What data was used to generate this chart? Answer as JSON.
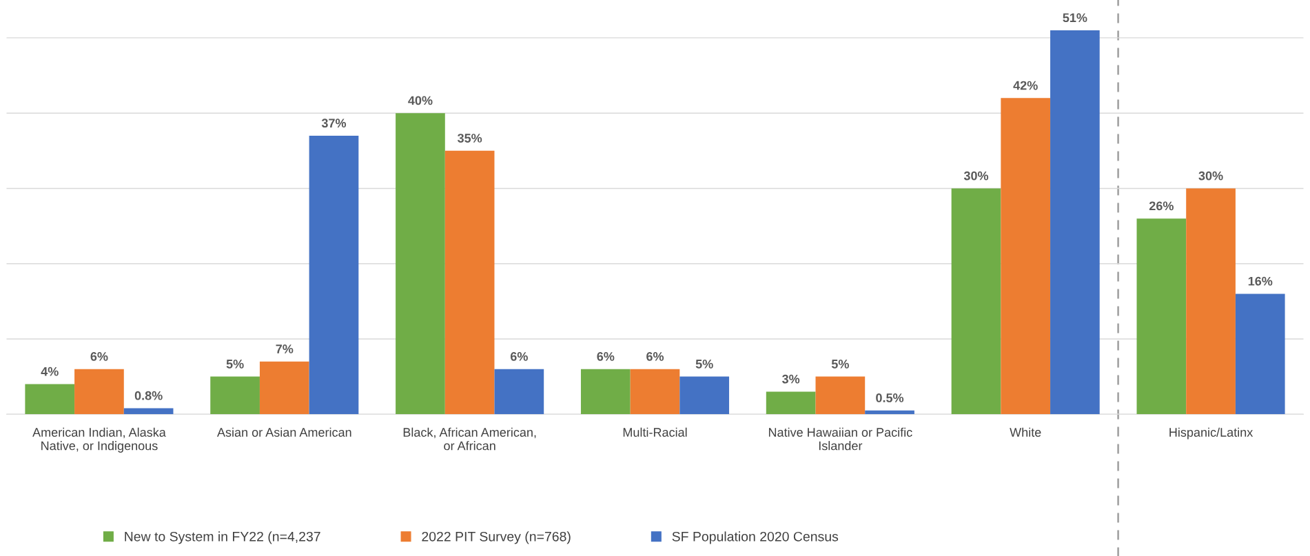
{
  "chart_data": {
    "type": "bar",
    "categories": [
      "American Indian, Alaska\nNative, or Indigenous",
      "Asian or Asian American",
      "Black, African American,\nor African",
      "Multi-Racial",
      "Native Hawaiian or Pacific\nIslander",
      "White",
      "Hispanic/Latinx"
    ],
    "series": [
      {
        "name": "New to System in FY22 (n=4,237",
        "color": "#70ad47",
        "values": [
          4,
          5,
          40,
          6,
          3,
          30,
          26
        ],
        "value_labels": [
          "4%",
          "5%",
          "40%",
          "6%",
          "3%",
          "30%",
          "26%"
        ]
      },
      {
        "name": "2022 PIT Survey (n=768)",
        "color": "#ed7d31",
        "values": [
          6,
          7,
          35,
          6,
          5,
          42,
          30
        ],
        "value_labels": [
          "6%",
          "7%",
          "35%",
          "6%",
          "5%",
          "42%",
          "30%"
        ]
      },
      {
        "name": "SF Population 2020 Census",
        "color": "#4472c4",
        "values": [
          0.8,
          37,
          6,
          5,
          0.5,
          51,
          16
        ],
        "value_labels": [
          "0.8%",
          "37%",
          "6%",
          "5%",
          "0.5%",
          "51%",
          "16%"
        ]
      }
    ],
    "yticks": [
      {
        "value": 0,
        "label": null
      },
      {
        "value": 10,
        "label": null
      },
      {
        "value": 20,
        "label": null
      },
      {
        "value": 30,
        "label": null
      },
      {
        "value": 40,
        "label": null
      },
      {
        "value": 50,
        "label": null
      }
    ],
    "grid": "y",
    "legend": "bottom",
    "tick_labels": "x"
  }
}
